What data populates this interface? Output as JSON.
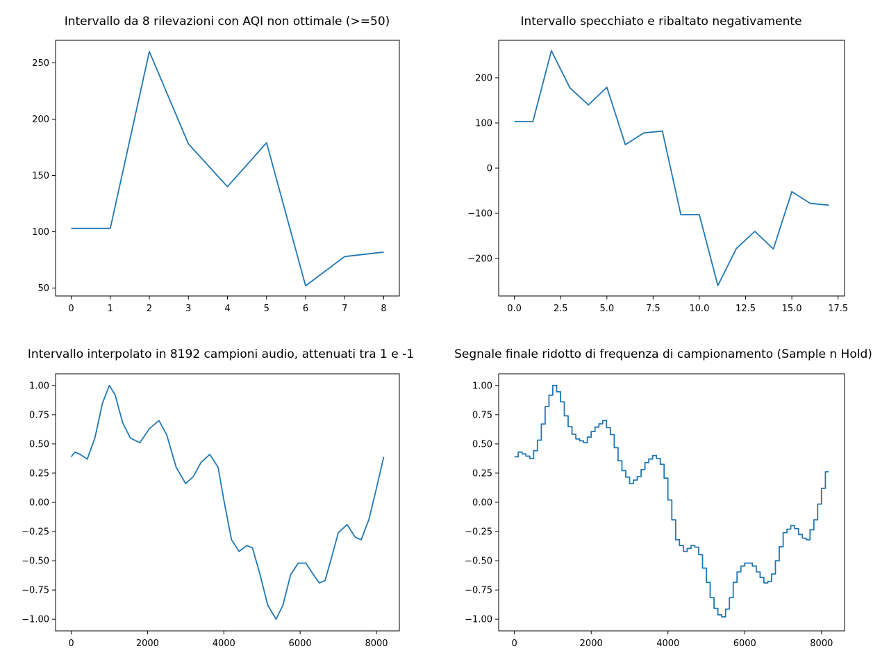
{
  "chart_data": [
    {
      "type": "line",
      "title": "Intervallo da 8 rilevazioni con AQI non ottimale (>=50)",
      "xlim": [
        -0.4,
        8.4
      ],
      "ylim": [
        43,
        270
      ],
      "xticks": [
        0,
        1,
        2,
        3,
        4,
        5,
        6,
        7,
        8
      ],
      "xtick_labels": [
        "0",
        "1",
        "2",
        "3",
        "4",
        "5",
        "6",
        "7",
        "8"
      ],
      "yticks": [
        50,
        100,
        150,
        200,
        250
      ],
      "ytick_labels": [
        "50",
        "100",
        "150",
        "200",
        "250"
      ],
      "x": [
        0,
        1,
        2,
        3,
        4,
        5,
        6,
        7,
        8
      ],
      "y": [
        103,
        103,
        260,
        178,
        140,
        179,
        52,
        78,
        82
      ]
    },
    {
      "type": "line",
      "title": "Intervallo specchiato e ribaltato negativamente",
      "xlim": [
        -0.85,
        17.85
      ],
      "ylim": [
        -283,
        283
      ],
      "xticks": [
        0,
        2.5,
        5,
        7.5,
        10,
        12.5,
        15,
        17.5
      ],
      "xtick_labels": [
        "0.0",
        "2.5",
        "5.0",
        "7.5",
        "10.0",
        "12.5",
        "15.0",
        "17.5"
      ],
      "yticks": [
        -200,
        -100,
        0,
        100,
        200
      ],
      "ytick_labels": [
        "−200",
        "−100",
        "0",
        "100",
        "200"
      ],
      "x": [
        0,
        1,
        2,
        3,
        4,
        5,
        6,
        7,
        8,
        9,
        10,
        11,
        12,
        13,
        14,
        15,
        16,
        17
      ],
      "y": [
        103,
        103,
        260,
        178,
        140,
        179,
        52,
        78,
        82,
        -103,
        -103,
        -260,
        -178,
        -140,
        -179,
        -52,
        -78,
        -82
      ]
    },
    {
      "type": "line",
      "title": "Intervallo interpolato in 8192 campioni audio, attenuati tra 1 e -1",
      "xlim": [
        -410,
        8600
      ],
      "ylim": [
        -1.1,
        1.1
      ],
      "xticks": [
        0,
        2000,
        4000,
        6000,
        8000
      ],
      "xtick_labels": [
        "0",
        "2000",
        "4000",
        "6000",
        "8000"
      ],
      "yticks": [
        -1,
        -0.75,
        -0.5,
        -0.25,
        0,
        0.25,
        0.5,
        0.75,
        1
      ],
      "ytick_labels": [
        "−1.00",
        "−0.75",
        "−0.50",
        "−0.25",
        "0.00",
        "0.25",
        "0.50",
        "0.75",
        "1.00"
      ],
      "x": [
        0,
        100,
        230,
        420,
        620,
        820,
        1000,
        1150,
        1350,
        1550,
        1800,
        2050,
        2300,
        2500,
        2750,
        3000,
        3200,
        3400,
        3630,
        3850,
        4000,
        4200,
        4400,
        4600,
        4750,
        4950,
        5150,
        5370,
        5550,
        5750,
        5950,
        6150,
        6350,
        6500,
        6650,
        6800,
        7000,
        7230,
        7450,
        7600,
        7800,
        8000,
        8191
      ],
      "y": [
        0.39,
        0.43,
        0.41,
        0.37,
        0.55,
        0.85,
        1.0,
        0.92,
        0.68,
        0.55,
        0.51,
        0.63,
        0.7,
        0.58,
        0.3,
        0.16,
        0.22,
        0.34,
        0.41,
        0.3,
        0.02,
        -0.32,
        -0.42,
        -0.37,
        -0.39,
        -0.62,
        -0.88,
        -1.0,
        -0.88,
        -0.62,
        -0.52,
        -0.52,
        -0.62,
        -0.69,
        -0.67,
        -0.5,
        -0.26,
        -0.19,
        -0.3,
        -0.32,
        -0.15,
        0.12,
        0.39
      ]
    },
    {
      "type": "line",
      "title": "Segnale finale ridotto di frequenza di campionamento (Sample n Hold)",
      "xlim": [
        -410,
        8600
      ],
      "ylim": [
        -1.1,
        1.1
      ],
      "xticks": [
        0,
        2000,
        4000,
        6000,
        8000
      ],
      "xtick_labels": [
        "0",
        "2000",
        "4000",
        "6000",
        "8000"
      ],
      "yticks": [
        -1,
        -0.75,
        -0.5,
        -0.25,
        0,
        0.25,
        0.5,
        0.75,
        1
      ],
      "ytick_labels": [
        "−1.00",
        "−0.75",
        "−0.50",
        "−0.25",
        "0.00",
        "0.25",
        "0.50",
        "0.75",
        "1.00"
      ],
      "step": true,
      "x": [
        0,
        100,
        230,
        420,
        620,
        820,
        1000,
        1150,
        1350,
        1550,
        1800,
        2050,
        2300,
        2500,
        2750,
        3000,
        3200,
        3400,
        3630,
        3850,
        4000,
        4200,
        4400,
        4600,
        4750,
        4950,
        5150,
        5370,
        5550,
        5750,
        5950,
        6150,
        6350,
        6500,
        6650,
        6800,
        7000,
        7230,
        7450,
        7600,
        7800,
        8000,
        8191
      ],
      "y": [
        0.39,
        0.43,
        0.41,
        0.37,
        0.55,
        0.85,
        1.0,
        0.92,
        0.68,
        0.55,
        0.51,
        0.63,
        0.7,
        0.58,
        0.3,
        0.16,
        0.22,
        0.34,
        0.41,
        0.3,
        0.02,
        -0.32,
        -0.42,
        -0.37,
        -0.39,
        -0.62,
        -0.88,
        -1.0,
        -0.88,
        -0.62,
        -0.52,
        -0.52,
        -0.62,
        -0.69,
        -0.67,
        -0.5,
        -0.26,
        -0.19,
        -0.3,
        -0.32,
        -0.15,
        0.12,
        0.39
      ]
    }
  ]
}
